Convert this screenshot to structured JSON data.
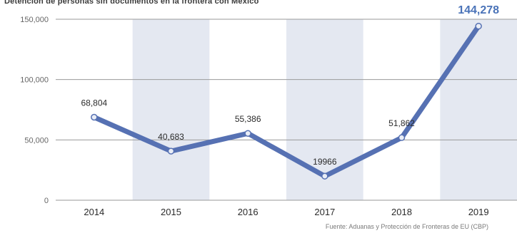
{
  "chart_data": {
    "type": "line",
    "title": "Detención de personas sin documentos en la frontera con México",
    "source": "Fuente: Aduanas y Protección de Fronteras de EU (CBP)",
    "categories": [
      "2014",
      "2015",
      "2016",
      "2017",
      "2018",
      "2019"
    ],
    "series": [
      {
        "values": [
          68804,
          40683,
          55386,
          19966,
          51862,
          144278
        ]
      }
    ],
    "data_labels": [
      "68,804",
      "40,683",
      "55,386",
      "19966",
      "51,862",
      "144,278"
    ],
    "y_ticks": [
      0,
      50000,
      100000,
      150000
    ],
    "y_tick_labels": [
      "0",
      "50,000",
      "100,000",
      "150,000"
    ],
    "ylim": [
      0,
      150000
    ],
    "grid": true,
    "colors": {
      "line": "#5671b3",
      "marker": "#e9edf6",
      "band_alt": "#e4e8f1",
      "highlight_label": "#4a73b8",
      "grid": "#9a9a9a"
    }
  }
}
